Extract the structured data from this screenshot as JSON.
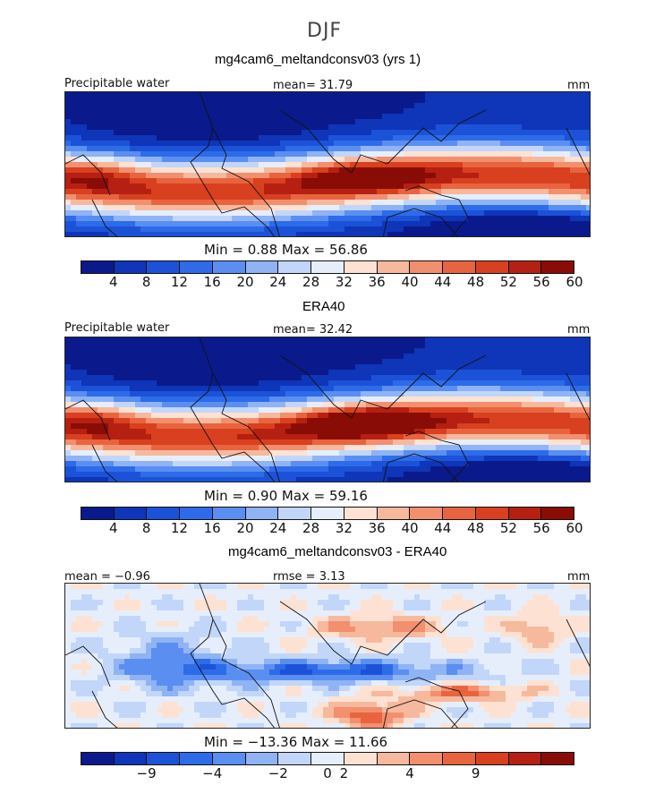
{
  "page_title": "DJF",
  "palette": [
    "#0a1a8c",
    "#0f35b8",
    "#1c52d8",
    "#2e6be8",
    "#5a8ef0",
    "#8fb3f5",
    "#c2d6fa",
    "#e6eefc",
    "#fde2d3",
    "#f7b99d",
    "#f28f6e",
    "#e8643f",
    "#d8401f",
    "#b52012",
    "#8a0c06"
  ],
  "panels": [
    {
      "title": "mg4cam6_meltandconsv03 (yrs 1)",
      "left_label": "Precipitable water",
      "center_label": "mean=  31.79",
      "right_label": "mm",
      "stats": "Min =    0.88  Max =   56.86",
      "ticks": [
        "4",
        "8",
        "12",
        "16",
        "20",
        "24",
        "28",
        "32",
        "36",
        "40",
        "44",
        "48",
        "52",
        "56",
        "60"
      ],
      "kind": "field"
    },
    {
      "title": "ERA40",
      "left_label": "Precipitable water",
      "center_label": "mean=  32.42",
      "right_label": "mm",
      "stats": "Min =    0.90  Max =   59.16",
      "ticks": [
        "4",
        "8",
        "12",
        "16",
        "20",
        "24",
        "28",
        "32",
        "36",
        "40",
        "44",
        "48",
        "52",
        "56",
        "60"
      ],
      "kind": "field"
    },
    {
      "title": "mg4cam6_meltandconsv03 - ERA40",
      "left_label": "mean =  −0.96",
      "center_label": "rmse =    3.13",
      "right_label": "mm",
      "stats": "Min = −13.36  Max =   11.66",
      "ticks": [
        "−9",
        "−4",
        "−2",
        "0",
        "2",
        "4",
        "9"
      ],
      "kind": "diff"
    }
  ]
}
